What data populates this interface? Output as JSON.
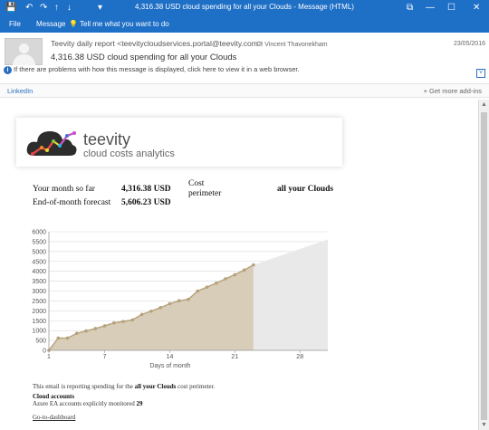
{
  "window": {
    "title": "4,316.38 USD cloud spending for all your Clouds - Message (HTML)",
    "controls": {
      "help": "?",
      "restore": "⧉",
      "minimize": "—",
      "maximize": "☐",
      "close": "✕"
    }
  },
  "quick_access": {
    "save": "💾",
    "undo": "↶",
    "redo": "↷",
    "up": "↑",
    "down": "↓",
    "more": "▾"
  },
  "ribbon": {
    "file": "File",
    "message": "Message",
    "tell_me": "Tell me what you want to do"
  },
  "message": {
    "from": "Teevity daily report <teevitycloudservices.portal@teevity.com>",
    "to": "Vincent Thavonekham",
    "date": "23/05/2016",
    "subject": "4,316.38 USD cloud spending for all your Clouds",
    "info": "If there are problems with how this message is displayed, click here to view it in a web browser."
  },
  "addins": {
    "linkedin": "LinkedIn",
    "get_more": "Get more add-ins"
  },
  "brand": {
    "name": "teevity",
    "tagline": "cloud costs analytics"
  },
  "summary": {
    "month_label": "Your month so far",
    "month_value": "4,316.38 USD",
    "forecast_label": "End-of-month forecast",
    "forecast_value": "5,606.23 USD",
    "perimeter_label_1": "Cost",
    "perimeter_label_2": "perimeter",
    "perimeter_value": "all your Clouds"
  },
  "chart_data": {
    "type": "area",
    "xlabel": "Days of month",
    "ylabel": "",
    "xlim": [
      1,
      31
    ],
    "ylim": [
      0,
      6000
    ],
    "x_ticks": [
      1,
      7,
      14,
      21,
      28
    ],
    "y_ticks": [
      0,
      500,
      1000,
      1500,
      2000,
      2500,
      3000,
      3500,
      4000,
      4500,
      5000,
      5500,
      6000
    ],
    "grid": true,
    "series": [
      {
        "x": [
          1,
          2,
          3,
          4,
          5,
          6,
          7,
          8,
          9,
          10,
          11,
          12,
          13,
          14,
          15,
          16,
          17,
          18,
          19,
          20,
          21,
          22,
          23
        ],
        "values": [
          0,
          620,
          620,
          860,
          980,
          1100,
          1240,
          1390,
          1460,
          1540,
          1820,
          1980,
          2160,
          2360,
          2510,
          2580,
          3000,
          3200,
          3400,
          3620,
          3830,
          4060,
          4320
        ],
        "color": "#b6a17a"
      },
      {
        "x": [
          23,
          31
        ],
        "values": [
          4320,
          5610
        ],
        "color": "#e9e9e9"
      }
    ]
  },
  "notes": {
    "intro_1": "This email is reporting spending for the",
    "intro_bold": "all your Clouds",
    "intro_2": "cost perimeter.",
    "accounts_title": "Cloud accounts",
    "accounts_line": "Azure EA accounts explicitly monitored",
    "accounts_count": "29",
    "dashboard": "Go-to-dashboard"
  },
  "colors": {
    "accent": "#1e6fc6",
    "link": "#2a6fbf",
    "area_actual": "#d8cdb9",
    "area_forecast": "#e9e9e9",
    "line": "#b6a17a"
  }
}
